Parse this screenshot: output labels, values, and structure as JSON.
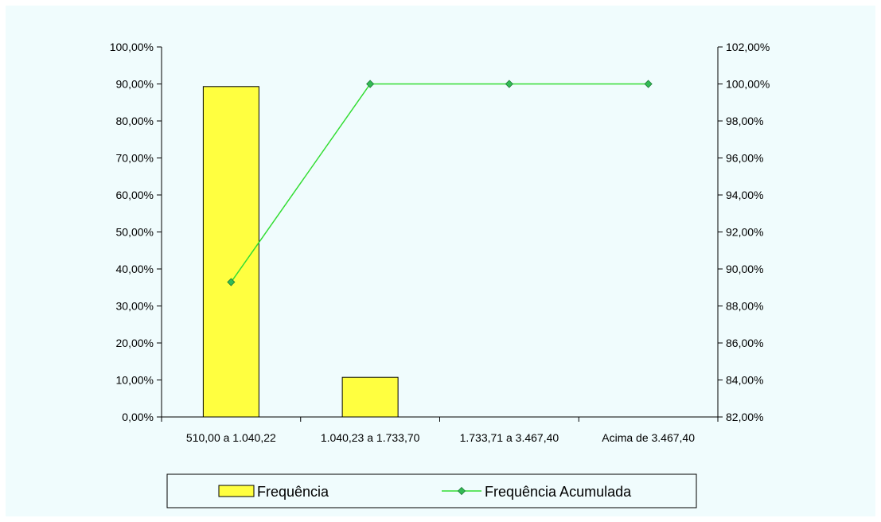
{
  "chart_data": {
    "type": "bar",
    "categories": [
      "510,00 a 1.040,22",
      "1.040,23 a 1.733,70",
      "1.733,71 a 3.467,40",
      "Acima de 3.467,40"
    ],
    "series": [
      {
        "name": "Frequência",
        "type": "bar",
        "axis": "left",
        "values": [
          89.29,
          10.71,
          0,
          0
        ]
      },
      {
        "name": "Frequência Acumulada",
        "type": "line",
        "axis": "right",
        "values": [
          89.29,
          100.0,
          100.0,
          100.0
        ]
      }
    ],
    "y_left": {
      "min": 0,
      "max": 100,
      "step": 10,
      "tick_labels": [
        "0,00%",
        "10,00%",
        "20,00%",
        "30,00%",
        "40,00%",
        "50,00%",
        "60,00%",
        "70,00%",
        "80,00%",
        "90,00%",
        "100,00%"
      ]
    },
    "y_right": {
      "min": 82,
      "max": 102,
      "step": 2,
      "tick_labels": [
        "82,00%",
        "84,00%",
        "86,00%",
        "88,00%",
        "90,00%",
        "92,00%",
        "94,00%",
        "96,00%",
        "98,00%",
        "100,00%",
        "102,00%"
      ]
    },
    "grid": false,
    "legend_position": "bottom"
  },
  "colors": {
    "bar_fill": "#ffff40",
    "line": "#33dd33",
    "marker": "#33bb55",
    "background": "#f0fcfd"
  }
}
